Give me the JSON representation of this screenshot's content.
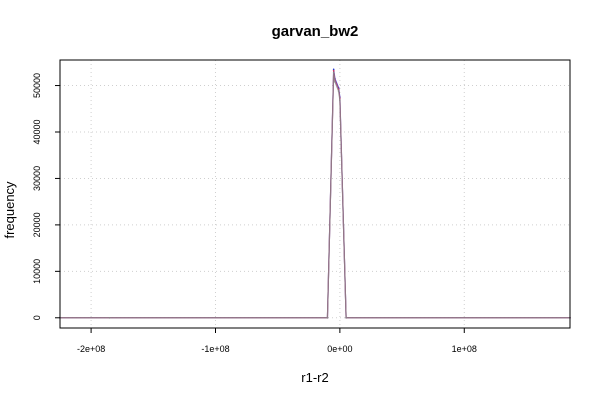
{
  "chart_data": {
    "type": "line",
    "title": "garvan_bw2",
    "xlabel": "r1-r2",
    "ylabel": "frequency",
    "xlim": [
      -225000000,
      185000000
    ],
    "ylim": [
      -2200,
      55500
    ],
    "x_ticks": [
      {
        "value": -200000000,
        "label": "-2e+08"
      },
      {
        "value": -100000000,
        "label": "-1e+08"
      },
      {
        "value": 0,
        "label": "0e+00"
      },
      {
        "value": 100000000,
        "label": "1e+08"
      }
    ],
    "y_ticks": [
      {
        "value": 0,
        "label": "0"
      },
      {
        "value": 10000,
        "label": "10000"
      },
      {
        "value": 20000,
        "label": "20000"
      },
      {
        "value": 30000,
        "label": "30000"
      },
      {
        "value": 40000,
        "label": "40000"
      },
      {
        "value": 50000,
        "label": "50000"
      }
    ],
    "grid": true,
    "series": [
      {
        "color": "#2233cc",
        "x": [
          -225000000,
          -185000000,
          -10000000,
          -5000000,
          -4000000,
          -1000000,
          0,
          5000000,
          185000000
        ],
        "values": [
          0,
          0,
          0,
          53500,
          51500,
          49500,
          47500,
          0,
          0
        ]
      },
      {
        "color": "#cc3366",
        "x": [
          -225000000,
          -185000000,
          -10000000,
          -5000000,
          -4000000,
          -1000000,
          0,
          5000000,
          185000000
        ],
        "values": [
          0,
          0,
          0,
          53200,
          51200,
          49200,
          47200,
          0,
          0
        ]
      },
      {
        "color": "#888888",
        "x": [
          -225000000,
          -185000000,
          -10000000,
          -5000000,
          -4000000,
          -1000000,
          0,
          5000000,
          185000000
        ],
        "values": [
          0,
          0,
          0,
          52800,
          50800,
          48800,
          46800,
          0,
          0
        ]
      }
    ]
  }
}
